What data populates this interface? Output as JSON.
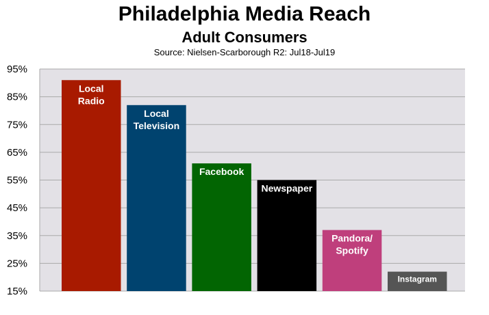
{
  "chart_data": {
    "type": "bar",
    "title": "Philadelphia Media Reach",
    "subtitle": "Adult Consumers",
    "source": "Source: Nielsen-Scarborough R2: Jul18-Jul19",
    "categories": [
      [
        "Local",
        "Radio"
      ],
      [
        "Local",
        "Television"
      ],
      [
        "Facebook"
      ],
      [
        "Newspaper"
      ],
      [
        "Pandora/",
        "Spotify"
      ],
      [
        "Instagram"
      ]
    ],
    "values": [
      91,
      82,
      61,
      55,
      37,
      22
    ],
    "colors": [
      "#a81a00",
      "#00436f",
      "#026502",
      "#000000",
      "#bf3f7c",
      "#555555"
    ],
    "ylim": [
      15,
      95
    ],
    "yticks": [
      "15%",
      "25%",
      "35%",
      "45%",
      "55%",
      "65%",
      "75%",
      "85%",
      "95%"
    ],
    "ytick_values": [
      15,
      25,
      35,
      45,
      55,
      65,
      75,
      85,
      95
    ],
    "grid": true,
    "plot_background": "#e3e1e6"
  }
}
